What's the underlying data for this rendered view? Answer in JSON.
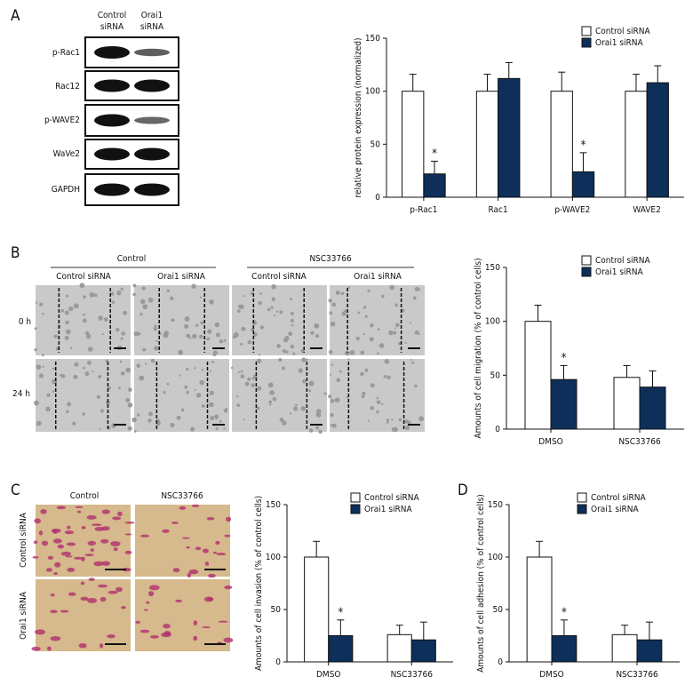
{
  "figure": {
    "panel_labels": [
      "A",
      "B",
      "C",
      "D"
    ],
    "blot": {
      "columns": [
        [
          "Control",
          "siRNA"
        ],
        [
          "Orai1",
          "siRNA"
        ]
      ],
      "rows": [
        "p-Rac1",
        "Rac12",
        "p-WAVE2",
        "WaVe2",
        "GAPDH"
      ]
    },
    "scratch": {
      "groups": [
        "Control",
        "NSC33766"
      ],
      "columns": [
        "Control siRNA",
        "Orai1 siRNA",
        "Control siRNA",
        "Orai1 siRNA"
      ],
      "rows": [
        "0 h",
        "24 h"
      ]
    },
    "invasion_images": {
      "columns": [
        "Control",
        "NSC33766"
      ],
      "rows": [
        "Control siRNA",
        "Orai1 siRNA"
      ]
    }
  },
  "chart_data": [
    {
      "type": "bar",
      "y_label": "relative protein expression (normalized)",
      "categories": [
        "p-Rac1",
        "Rac1",
        "p-WAVE2",
        "WAVE2"
      ],
      "ylim": [
        0,
        150
      ],
      "yticks": [
        0,
        50,
        100,
        150
      ],
      "legend": "upper right",
      "series": [
        {
          "name": "Control siRNA",
          "color": "#ffffff",
          "values": [
            100,
            100,
            100,
            100
          ],
          "errors": [
            16,
            16,
            18,
            16
          ]
        },
        {
          "name": "Orai1 siRNA",
          "color": "#0d2f5a",
          "values": [
            22,
            112,
            24,
            108
          ],
          "errors": [
            12,
            15,
            18,
            16
          ]
        }
      ],
      "annotations": [
        {
          "text": "*",
          "series": 1,
          "category": 0
        },
        {
          "text": "*",
          "series": 1,
          "category": 2
        }
      ]
    },
    {
      "type": "bar",
      "y_label": "Amounts of cell migration (% of control cells)",
      "categories": [
        "DMSO",
        "NSC33766"
      ],
      "ylim": [
        0,
        150
      ],
      "yticks": [
        0,
        50,
        100,
        150
      ],
      "legend": "upper right",
      "series": [
        {
          "name": "Control siRNA",
          "color": "#ffffff",
          "values": [
            100,
            48
          ],
          "errors": [
            15,
            11
          ]
        },
        {
          "name": "Orai1 siRNA",
          "color": "#0d2f5a",
          "values": [
            46,
            39
          ],
          "errors": [
            13,
            15
          ]
        }
      ],
      "annotations": [
        {
          "text": "*",
          "series": 1,
          "category": 0
        }
      ]
    },
    {
      "type": "bar",
      "y_label": "Amounts of cell invasion (% of control cells)",
      "categories": [
        "DMSO",
        "NSC33766"
      ],
      "ylim": [
        0,
        150
      ],
      "yticks": [
        0,
        50,
        100,
        150
      ],
      "legend": "upper right",
      "series": [
        {
          "name": "Control siRNA",
          "color": "#ffffff",
          "values": [
            100,
            26
          ],
          "errors": [
            15,
            9
          ]
        },
        {
          "name": "Orai1 siRNA",
          "color": "#0d2f5a",
          "values": [
            25,
            21
          ],
          "errors": [
            15,
            17
          ]
        }
      ],
      "annotations": [
        {
          "text": "*",
          "series": 1,
          "category": 0
        }
      ]
    },
    {
      "type": "bar",
      "y_label": "Amounts of cell adhesion (% of control cells)",
      "categories": [
        "DMSO",
        "NSC33766"
      ],
      "ylim": [
        0,
        150
      ],
      "yticks": [
        0,
        50,
        100,
        150
      ],
      "legend": "upper right",
      "series": [
        {
          "name": "Control siRNA",
          "color": "#ffffff",
          "values": [
            100,
            26
          ],
          "errors": [
            15,
            9
          ]
        },
        {
          "name": "Orai1 siRNA",
          "color": "#0d2f5a",
          "values": [
            25,
            21
          ],
          "errors": [
            15,
            17
          ]
        }
      ],
      "annotations": [
        {
          "text": "*",
          "series": 1,
          "category": 0
        }
      ]
    }
  ]
}
